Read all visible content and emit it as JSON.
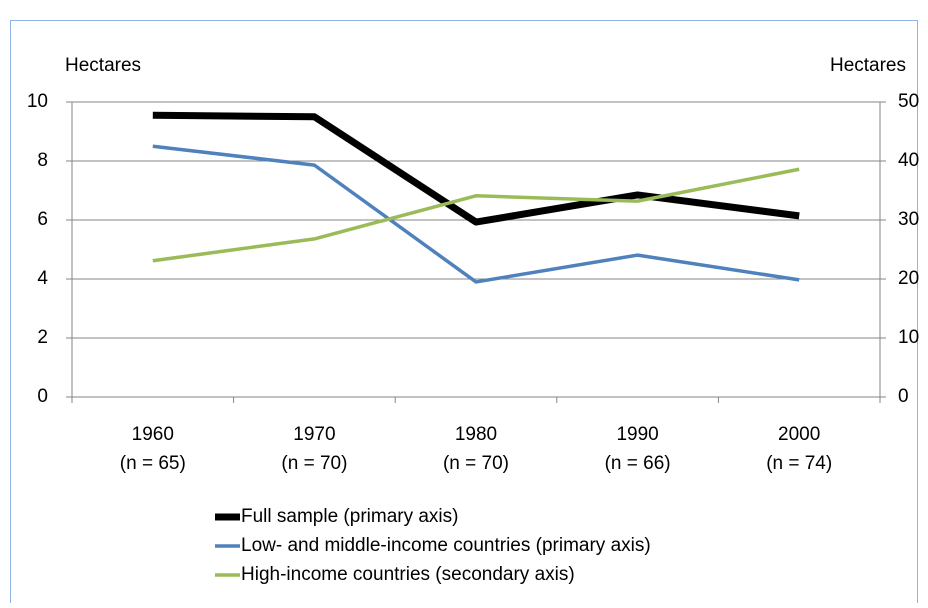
{
  "chart_data": {
    "type": "line",
    "ylabel": "Hectares",
    "y2label": "Hectares",
    "categories": [
      [
        "1960",
        "(n = 65)"
      ],
      [
        "1970",
        "(n = 70)"
      ],
      [
        "1980",
        "(n = 70)"
      ],
      [
        "1990",
        "(n = 66)"
      ],
      [
        "2000",
        "(n = 74)"
      ]
    ],
    "ylim": [
      0,
      10
    ],
    "yticks": [
      0,
      2,
      4,
      6,
      8,
      10
    ],
    "y2lim": [
      0,
      50
    ],
    "y2ticks": [
      0,
      10,
      20,
      30,
      40,
      50
    ],
    "grid": true,
    "legend": "bottom",
    "series": [
      {
        "name": "Full sample (primary axis)",
        "color": "#000000",
        "values": [
          9.55,
          9.5,
          5.93,
          6.85,
          6.14
        ]
      },
      {
        "name": "Low- and middle-income countries (primary axis)",
        "color": "#4f81bd",
        "values": [
          8.5,
          7.86,
          3.9,
          4.81,
          3.97
        ]
      },
      {
        "name": "High-income countries (secondary axis)",
        "color": "#9bbb59",
        "axis": "y2",
        "values": [
          23.1,
          26.8,
          34.1,
          33.2,
          38.6
        ]
      }
    ]
  }
}
